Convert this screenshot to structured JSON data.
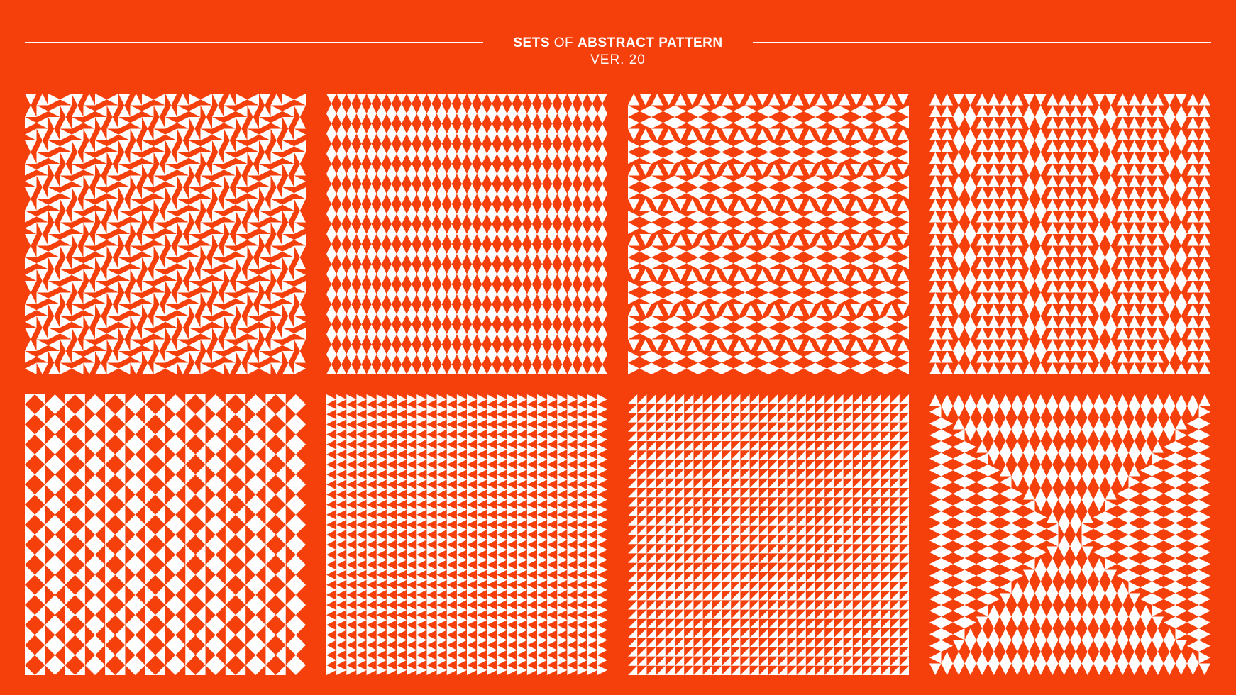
{
  "colors": {
    "background": "#f5400b",
    "pattern": "#ffffff"
  },
  "header": {
    "title_bold_1": "SETS",
    "title_light": "OF",
    "title_bold_2": "ABSTRACT PATTERN",
    "subtitle": "VER. 20"
  },
  "panels": [
    {
      "motif": "hourglass-diamond"
    },
    {
      "motif": "down-triangles"
    },
    {
      "motif": "diamond-bands"
    },
    {
      "motif": "stacked-triangles"
    },
    {
      "motif": "zigzag-diamonds"
    },
    {
      "motif": "half-square-right"
    },
    {
      "motif": "half-square-up"
    },
    {
      "motif": "concentric-diamonds"
    }
  ]
}
